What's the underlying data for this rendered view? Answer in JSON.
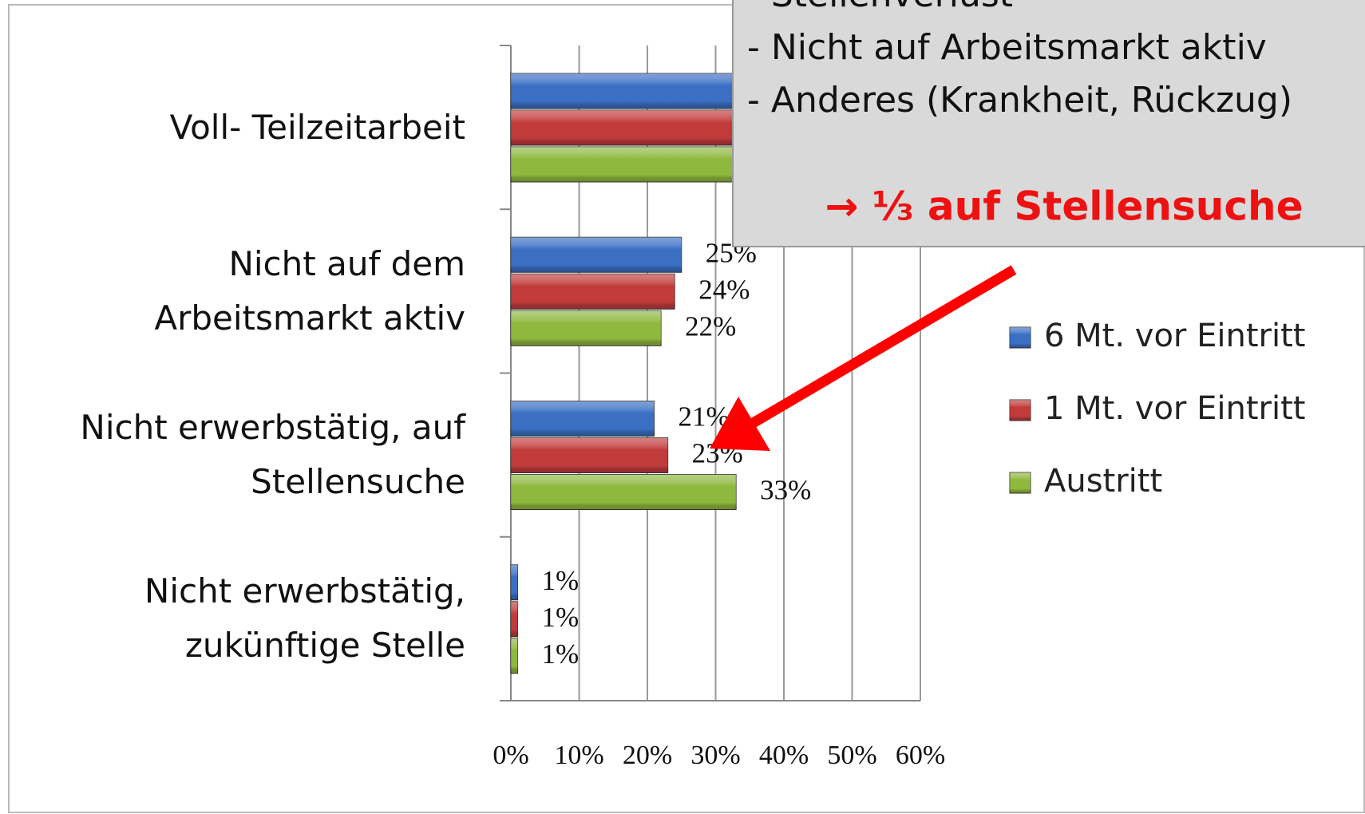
{
  "chart_data": {
    "type": "bar",
    "orientation": "horizontal",
    "categories": [
      "Voll- Teilzeitarbeit",
      "Nicht auf dem\nArbeitsmarkt aktiv",
      "Nicht erwerbstätig, auf\nStellensuche",
      "Nicht erwerbstätig,\nzukünftige Stelle"
    ],
    "series": [
      {
        "name": "6 Mt. vor Eintritt",
        "color": "#3a6fc4",
        "values": [
          53,
          25,
          21,
          1
        ],
        "value_labels": [
          null,
          "25%",
          "21%",
          "1%"
        ]
      },
      {
        "name": "1 Mt. vor Eintritt",
        "color": "#c23b3b",
        "values": [
          52,
          24,
          23,
          1
        ],
        "value_labels": [
          null,
          "24%",
          "23%",
          "1%"
        ]
      },
      {
        "name": "Austritt",
        "color": "#8fb83e",
        "values": [
          44,
          22,
          33,
          1
        ],
        "value_labels": [
          null,
          "22%",
          "33%",
          "1%"
        ]
      }
    ],
    "xlim": [
      0,
      60
    ],
    "xticks": [
      {
        "value": 0,
        "label": "0%"
      },
      {
        "value": 10,
        "label": "10%"
      },
      {
        "value": 20,
        "label": "20%"
      },
      {
        "value": 30,
        "label": "30%"
      },
      {
        "value": 40,
        "label": "40%"
      },
      {
        "value": 50,
        "label": "50%"
      },
      {
        "value": 60,
        "label": "60%"
      }
    ],
    "grid": true,
    "legend": "right",
    "annotations": [
      "- Stellenverlust",
      "- Nicht auf Arbeitsmarkt aktiv",
      "- Anderes (Krankheit, Rückzug)",
      "→ ⅓ auf Stellensuche"
    ]
  }
}
